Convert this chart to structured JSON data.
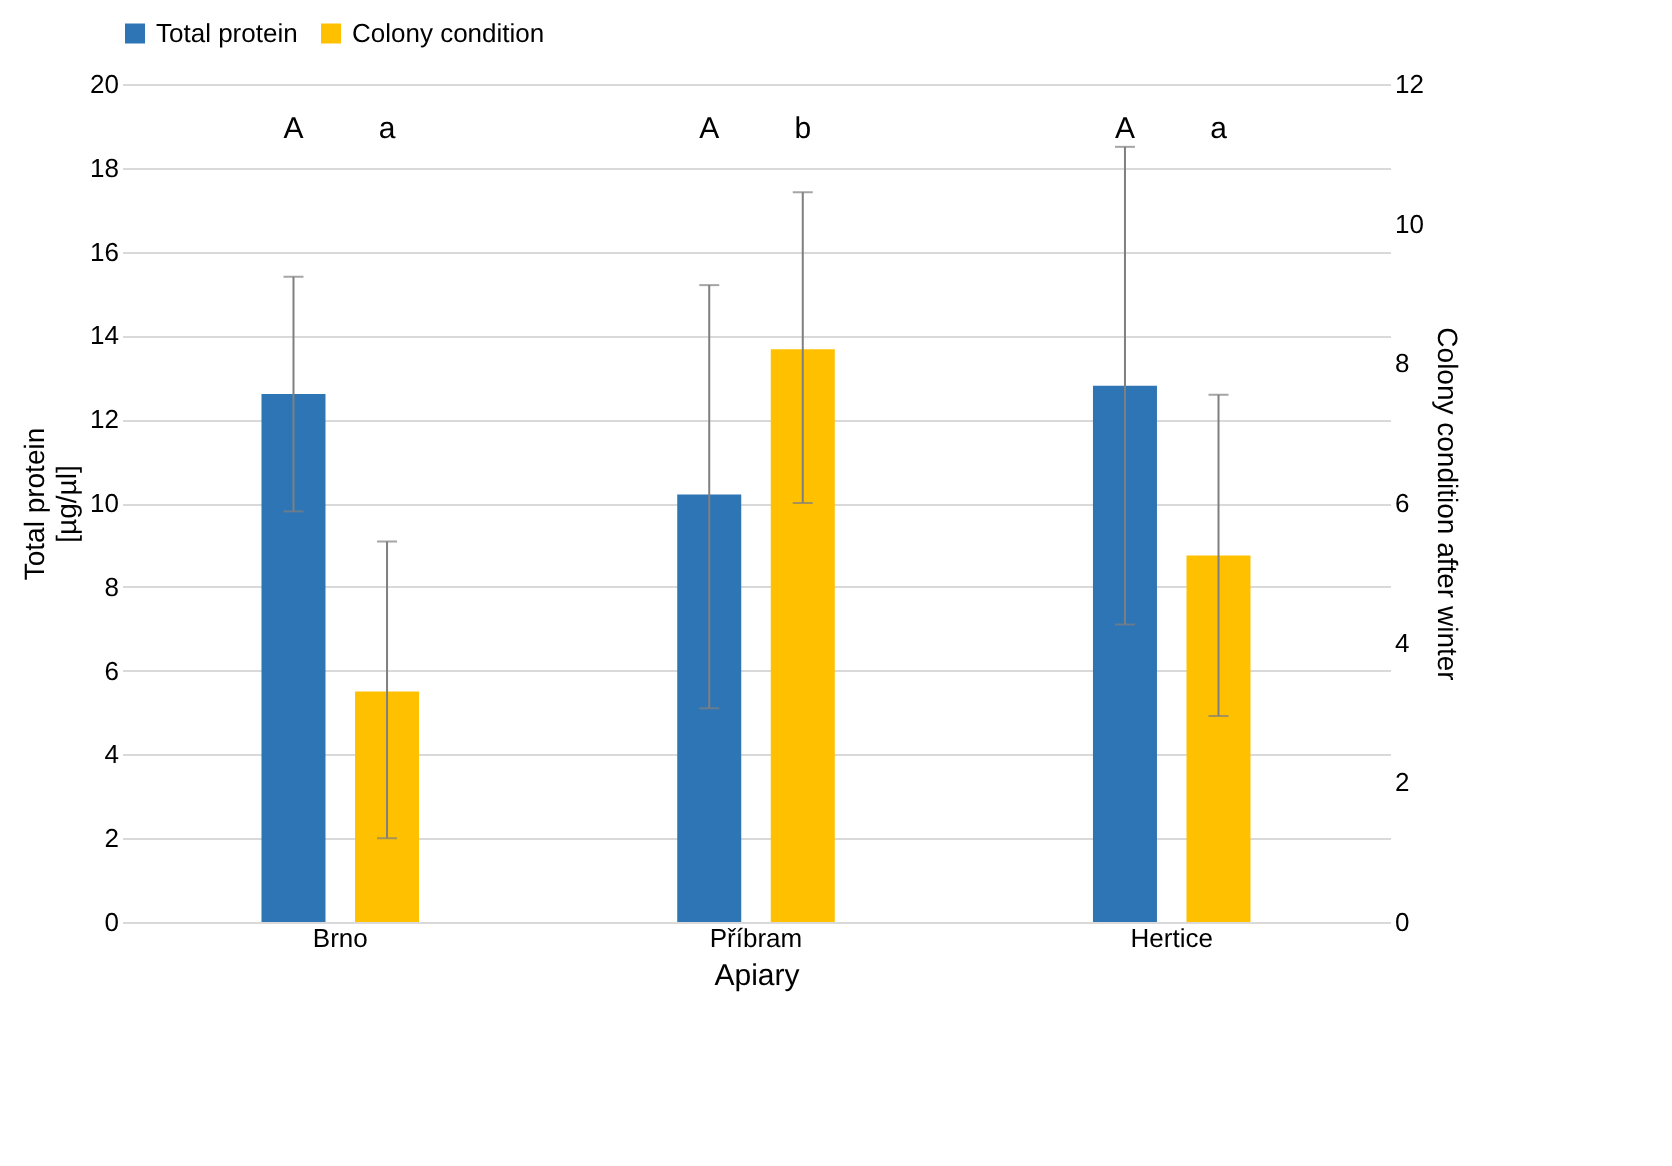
{
  "chart_data": {
    "type": "bar",
    "xlabel": "Apiary",
    "ylabel": "Total protein\n[µg/µl]",
    "y2label": "Colony condition after winter",
    "categories": [
      "Brno",
      "Příbram",
      "Hertice"
    ],
    "series": [
      {
        "name": "Total protein",
        "color": "#2e75b6",
        "values": [
          12.6,
          10.2,
          12.8
        ],
        "errors": [
          [
            9.8,
            15.4
          ],
          [
            5.1,
            15.2
          ],
          [
            7.1,
            18.5
          ]
        ]
      },
      {
        "name": "Colony condition",
        "color": "#ffc000",
        "values": [
          3.3,
          8.2,
          5.25
        ],
        "errors": [
          [
            1.2,
            5.45
          ],
          [
            6.0,
            10.45
          ],
          [
            2.95,
            7.55
          ]
        ],
        "axis": "y2"
      }
    ],
    "ylim": [
      0,
      20
    ],
    "yticks": [
      0,
      2,
      4,
      6,
      8,
      10,
      12,
      14,
      16,
      18,
      20
    ],
    "y2lim": [
      0,
      12
    ],
    "y2ticks": [
      0,
      2,
      4,
      6,
      8,
      10,
      12
    ],
    "annotations": [
      "A",
      "a",
      "A",
      "b",
      "A",
      "a"
    ],
    "grid": "y",
    "legend": "top"
  }
}
